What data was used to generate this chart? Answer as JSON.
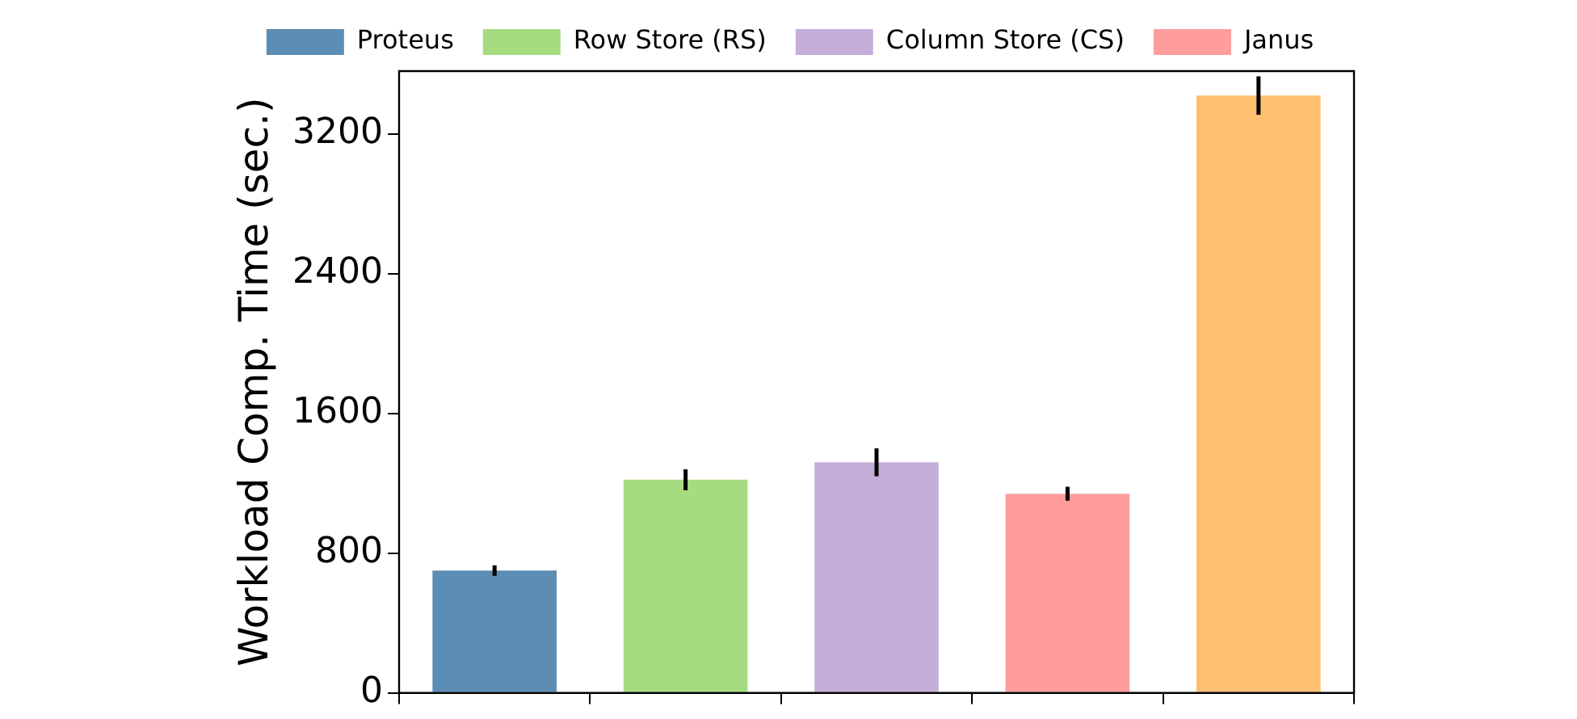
{
  "chart_data": {
    "type": "bar",
    "ylabel": "Workload Comp. Time (sec.)",
    "categories": [
      null,
      null,
      null,
      null,
      null
    ],
    "series": [
      {
        "name": "Proteus",
        "color": "#5b8db5",
        "values": [
          700,
          null,
          null,
          null,
          null
        ],
        "errors": [
          30,
          null,
          null,
          null,
          null
        ]
      },
      {
        "name": "Row Store (RS)",
        "color": "#a5dc80",
        "values": [
          null,
          1220,
          null,
          null,
          null
        ],
        "errors": [
          null,
          60,
          null,
          null,
          null
        ]
      },
      {
        "name": "Column Store (CS)",
        "color": "#c6aedb",
        "values": [
          null,
          null,
          1320,
          null,
          null
        ],
        "errors": [
          null,
          null,
          80,
          null,
          null
        ]
      },
      {
        "name": "Janus",
        "color": "#ff9c9c",
        "values": [
          null,
          null,
          null,
          1140,
          null
        ],
        "errors": [
          null,
          null,
          null,
          40,
          null
        ]
      },
      {
        "color": "#ffbf70",
        "values": [
          null,
          null,
          null,
          null,
          3420
        ],
        "errors": [
          null,
          null,
          null,
          null,
          110
        ]
      }
    ],
    "ylim": [
      0,
      3560
    ],
    "yticks": [
      0,
      800,
      1600,
      2400,
      3200
    ],
    "grid": false,
    "legend": "top",
    "tick_labels": "y"
  }
}
